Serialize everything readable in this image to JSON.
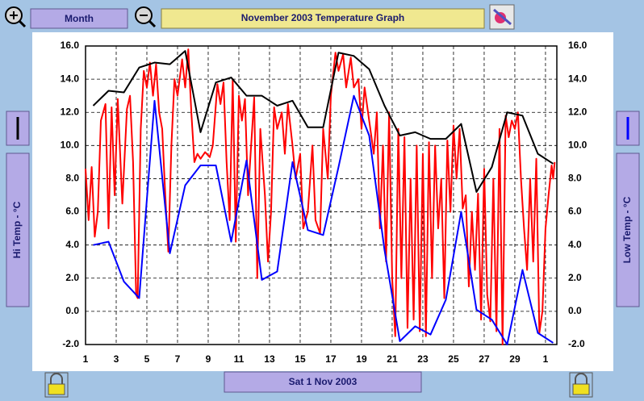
{
  "ui": {
    "period_button": "Month",
    "date_button": "Sat 1 Nov 2003"
  },
  "chart_data": {
    "type": "line",
    "title": "November 2003 Temperature Graph",
    "x": [
      1.5,
      2.5,
      3.5,
      4.5,
      5.5,
      6.5,
      7.5,
      8.5,
      9.5,
      10.5,
      11.5,
      12.5,
      13.5,
      14.5,
      15.5,
      16.5,
      17.5,
      18.5,
      19.5,
      20.5,
      21.5,
      22.5,
      23.5,
      24.5,
      25.5,
      26.5,
      27.5,
      28.5,
      29.5,
      30.5,
      31.5
    ],
    "series": [
      {
        "name": "Hi Temp - °C",
        "color": "#000000",
        "values": [
          12.4,
          13.3,
          13.2,
          14.7,
          15.0,
          14.9,
          15.7,
          10.8,
          13.8,
          14.1,
          13.0,
          13.0,
          12.4,
          12.7,
          11.1,
          11.1,
          15.6,
          15.4,
          14.6,
          12.4,
          10.6,
          10.8,
          10.4,
          10.4,
          11.3,
          7.2,
          8.7,
          12.0,
          11.8,
          9.5,
          8.9
        ]
      },
      {
        "name": "Low Temp - °C",
        "color": "#0000ff",
        "values": [
          4.0,
          4.2,
          1.8,
          0.8,
          12.7,
          3.5,
          7.6,
          8.8,
          8.8,
          4.2,
          9.1,
          1.9,
          2.4,
          9.0,
          4.9,
          4.6,
          8.7,
          13.0,
          10.6,
          3.7,
          -1.8,
          -0.9,
          -1.4,
          0.7,
          6.0,
          0.1,
          -0.5,
          -2.0,
          2.5,
          -1.3,
          -1.9
        ]
      },
      {
        "color": "#ff0000",
        "x": [
          1.0,
          1.2,
          1.4,
          1.6,
          1.8,
          2.0,
          2.3,
          2.5,
          2.7,
          2.9,
          3.1,
          3.4,
          3.7,
          3.9,
          4.1,
          4.3,
          4.4,
          4.6,
          4.8,
          5.0,
          5.2,
          5.4,
          5.6,
          5.8,
          6.0,
          6.2,
          6.4,
          6.6,
          6.8,
          7.0,
          7.3,
          7.5,
          7.7,
          7.9,
          8.1,
          8.3,
          8.5,
          8.8,
          9.1,
          9.3,
          9.6,
          9.8,
          10.0,
          10.2,
          10.4,
          10.6,
          10.8,
          11.0,
          11.2,
          11.4,
          11.6,
          11.8,
          12.0,
          12.2,
          12.4,
          12.7,
          12.9,
          13.1,
          13.3,
          13.5,
          13.8,
          14.0,
          14.2,
          14.5,
          14.7,
          15.0,
          15.2,
          15.5,
          15.8,
          16.0,
          16.3,
          16.5,
          16.8,
          17.0,
          17.3,
          17.5,
          17.8,
          18.0,
          18.3,
          18.5,
          18.8,
          19.0,
          19.2,
          19.5,
          19.8,
          20.0,
          20.2,
          20.4,
          20.6,
          20.8,
          21.0,
          21.2,
          21.4,
          21.6,
          21.8,
          22.0,
          22.2,
          22.4,
          22.6,
          22.8,
          23.0,
          23.2,
          23.4,
          23.6,
          23.8,
          24.0,
          24.2,
          24.4,
          24.6,
          24.8,
          25.0,
          25.2,
          25.4,
          25.6,
          25.8,
          26.0,
          26.2,
          26.4,
          26.6,
          26.8,
          27.0,
          27.2,
          27.4,
          27.6,
          27.8,
          28.0,
          28.2,
          28.4,
          28.6,
          28.8,
          29.0,
          29.2,
          29.4,
          29.6,
          29.8,
          30.0,
          30.2,
          30.4,
          30.6,
          30.8,
          31.0,
          31.2,
          31.4,
          31.5,
          31.6
        ],
        "values": [
          8.6,
          5.5,
          8.7,
          4.5,
          6.0,
          11.5,
          12.5,
          5.0,
          12.3,
          7.0,
          12.8,
          6.5,
          12.2,
          13.0,
          9.0,
          1.0,
          0.8,
          11.0,
          14.5,
          13.5,
          15.0,
          13.0,
          14.9,
          12.0,
          11.0,
          7.0,
          3.6,
          10.0,
          14.0,
          13.0,
          15.2,
          13.5,
          15.8,
          12.0,
          9.0,
          9.5,
          9.2,
          9.6,
          9.3,
          10.0,
          13.7,
          12.5,
          13.8,
          9.0,
          5.5,
          14.0,
          4.2,
          13.0,
          11.5,
          12.8,
          7.0,
          10.0,
          12.9,
          2.0,
          11.0,
          7.0,
          3.0,
          6.0,
          12.3,
          11.0,
          12.0,
          9.5,
          12.5,
          10.0,
          8.0,
          9.5,
          5.0,
          6.0,
          10.0,
          5.5,
          4.7,
          11.0,
          8.0,
          13.0,
          15.6,
          14.5,
          15.5,
          13.5,
          15.3,
          13.5,
          14.0,
          11.0,
          13.5,
          11.5,
          9.5,
          12.0,
          5.0,
          10.0,
          3.0,
          12.0,
          2.0,
          -1.5,
          11.0,
          2.0,
          10.5,
          -1.0,
          8.0,
          -0.5,
          10.0,
          -1.2,
          9.5,
          -1.5,
          10.2,
          2.0,
          10.0,
          5.0,
          8.0,
          0.8,
          10.3,
          6.0,
          11.2,
          8.0,
          11.0,
          6.2,
          7.0,
          1.5,
          6.0,
          2.5,
          7.1,
          -0.5,
          8.6,
          1.0,
          -0.6,
          8.0,
          -1.2,
          11.0,
          -2.0,
          11.8,
          10.5,
          11.5,
          11.0,
          12.0,
          8.0,
          5.0,
          2.5,
          8.0,
          3.0,
          9.2,
          -1.3,
          0.0,
          5.0,
          7.0,
          8.8,
          8.0,
          9.0
        ]
      }
    ],
    "xlim": [
      1,
      31.74
    ],
    "xticks": [
      1,
      3,
      5,
      7,
      9,
      11,
      13,
      15,
      17,
      19,
      21,
      23,
      25,
      27,
      29,
      {
        "value": 31,
        "label": "1"
      }
    ],
    "ylim": [
      -2,
      16
    ],
    "yticks": [
      {
        "value": -2,
        "label": "-2.0"
      },
      {
        "value": 0,
        "label": "0.0"
      },
      {
        "value": 2,
        "label": "2.0"
      },
      {
        "value": 4,
        "label": "4.0"
      },
      {
        "value": 6,
        "label": "6.0"
      },
      {
        "value": 8,
        "label": "8.0"
      },
      {
        "value": 10,
        "label": "10.0"
      },
      {
        "value": 12,
        "label": "12.0"
      },
      {
        "value": 14,
        "label": "14.0"
      },
      {
        "value": 16,
        "label": "16.0"
      }
    ],
    "grid": true
  }
}
